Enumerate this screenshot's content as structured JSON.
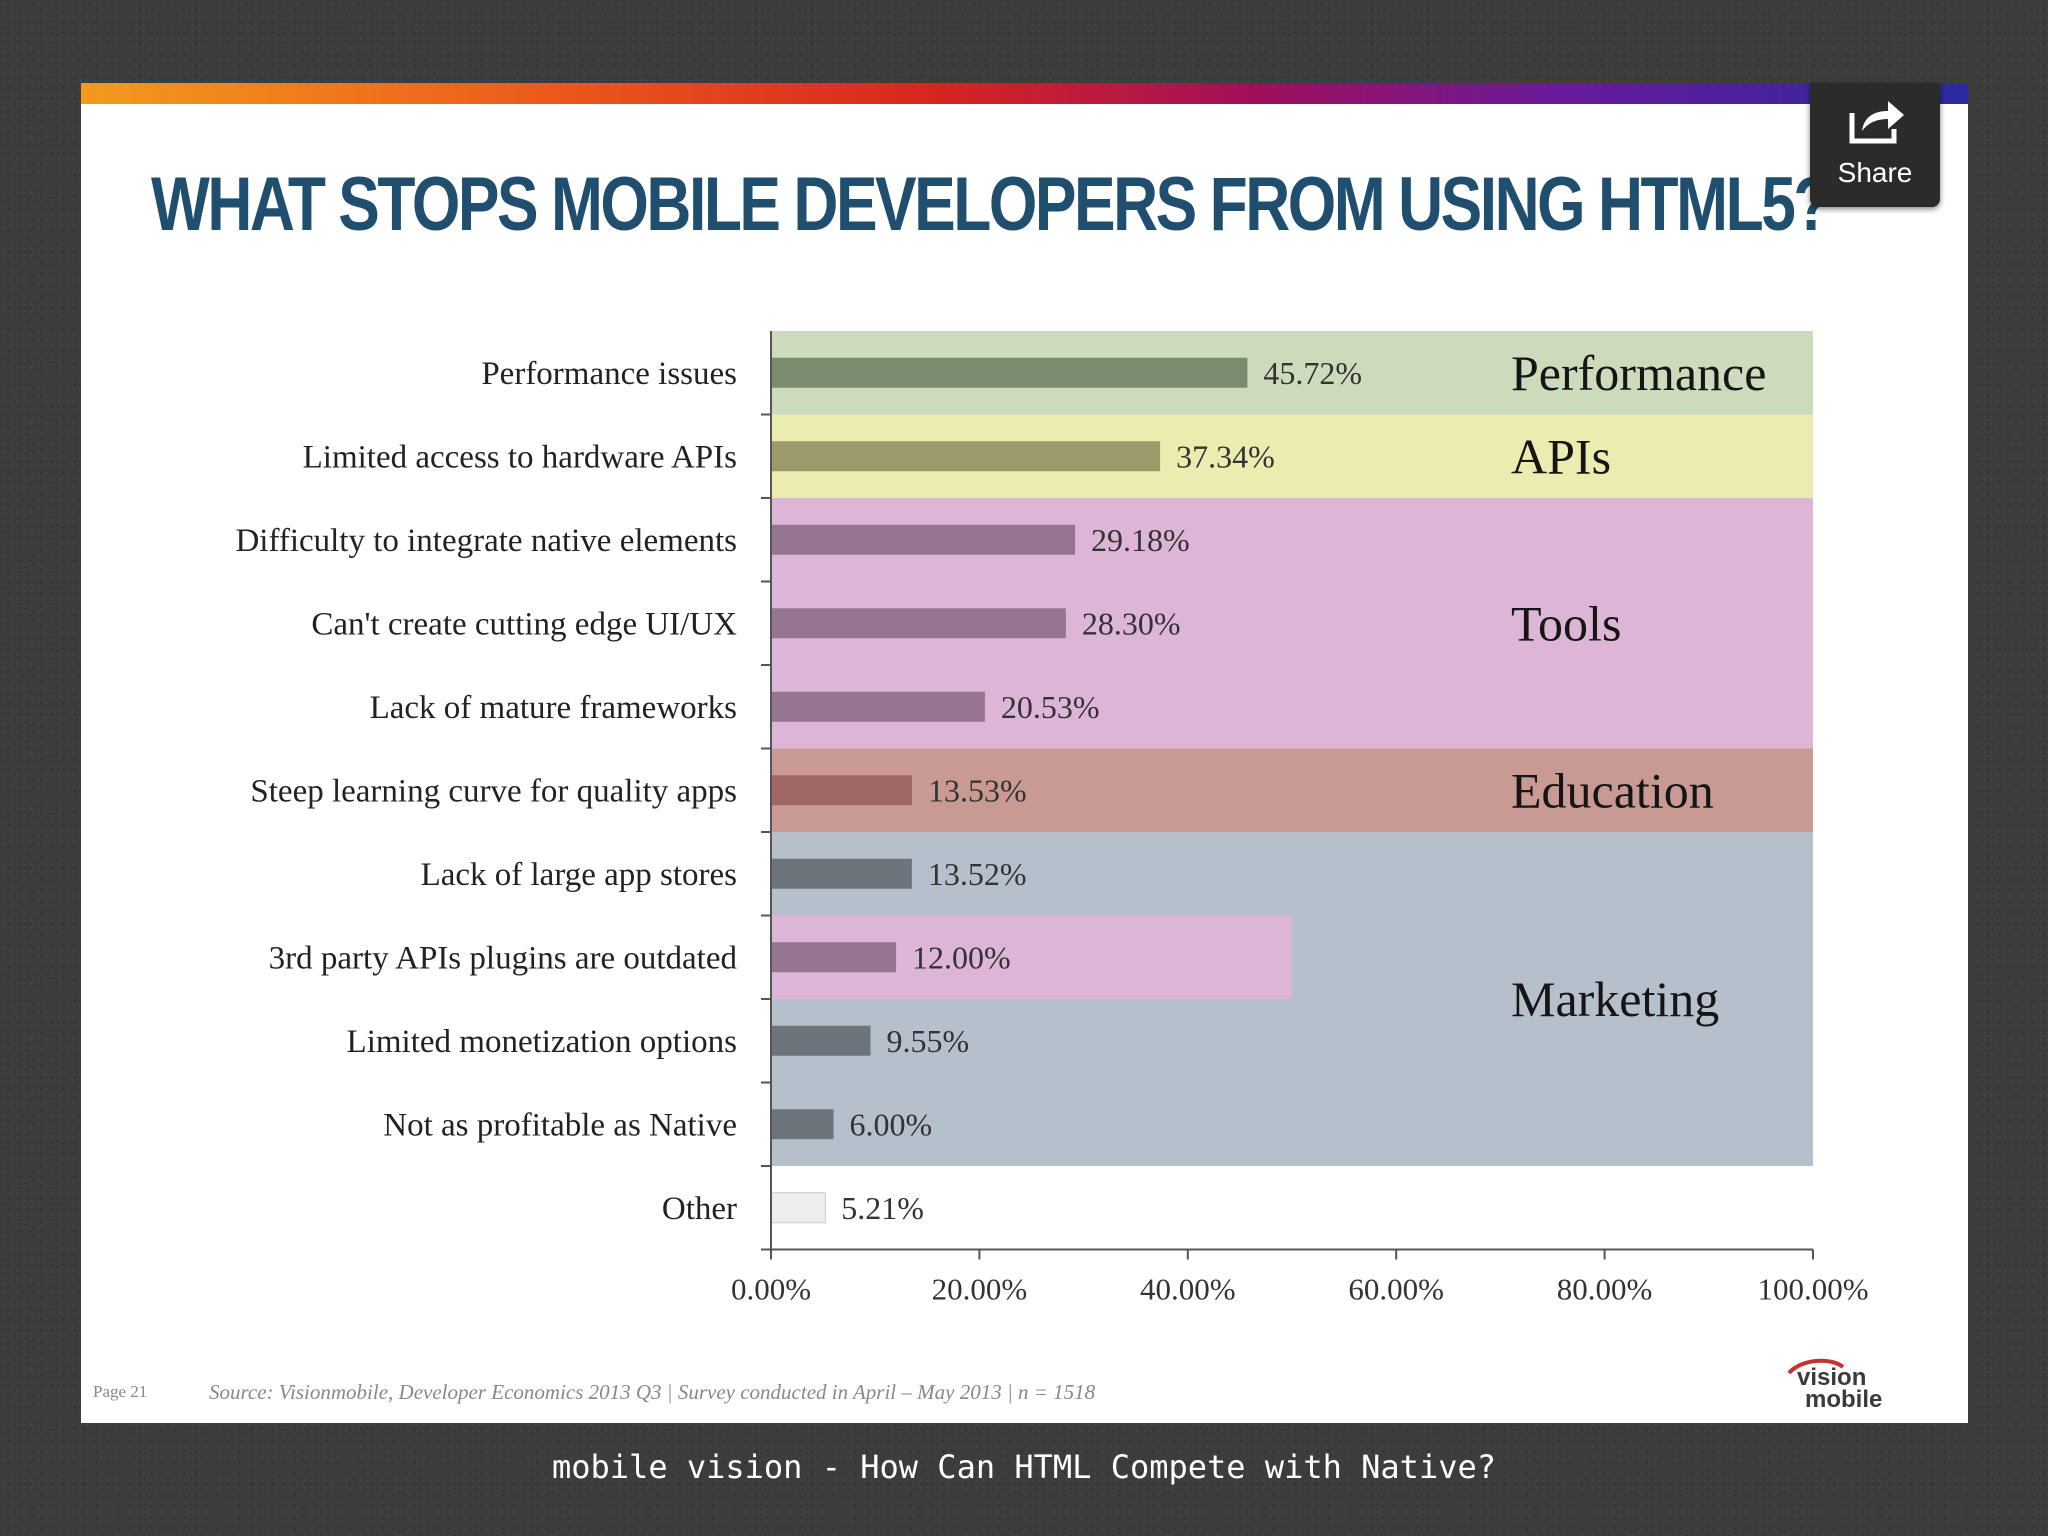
{
  "slide": {
    "title": "WHAT STOPS MOBILE DEVELOPERS FROM USING HTML5?",
    "share_label": "Share",
    "page_number": "Page 21",
    "source": "Source: Visionmobile, Developer Economics 2013 Q3 | Survey conducted in April – May 2013 | n = 1518",
    "logo_text": "vision mobile"
  },
  "caption": "mobile vision - How Can HTML Compete with Native?",
  "chart_data": {
    "type": "bar",
    "orientation": "horizontal",
    "categories": [
      "Performance issues",
      "Limited access to hardware APIs",
      "Difficulty to integrate native elements",
      "Can't create cutting edge UI/UX",
      "Lack of mature frameworks",
      "Steep learning curve for quality apps",
      "Lack of large app stores",
      "3rd party APIs plugins are outdated",
      "Limited monetization options",
      "Not as profitable as Native",
      "Other"
    ],
    "values": [
      45.72,
      37.34,
      29.18,
      28.3,
      20.53,
      13.53,
      13.52,
      12.0,
      9.55,
      6.0,
      5.21
    ],
    "value_labels": [
      "45.72%",
      "37.34%",
      "29.18%",
      "28.30%",
      "20.53%",
      "13.53%",
      "13.52%",
      "12.00%",
      "9.55%",
      "6.00%",
      "5.21%"
    ],
    "xlim": [
      0,
      100
    ],
    "x_ticks": [
      "0.00%",
      "20.00%",
      "40.00%",
      "60.00%",
      "80.00%",
      "100.00%"
    ],
    "groups": [
      {
        "name": "Performance",
        "first": 0,
        "last": 0,
        "bg": "#cddbbd",
        "bar": "#7a8c70"
      },
      {
        "name": "APIs",
        "first": 1,
        "last": 1,
        "bg": "#ecebb0",
        "bar": "#9a9a6a"
      },
      {
        "name": "Tools",
        "first": 2,
        "last": 4,
        "bg": "#ddb6d7",
        "bar": "#957590"
      },
      {
        "name": "Education",
        "first": 5,
        "last": 5,
        "bg": "#c99a94",
        "bar": "#a06864"
      },
      {
        "name": "Marketing",
        "first": 6,
        "last": 9,
        "bg": "#b6c0cc",
        "bar": "#6e747c"
      }
    ],
    "highlight": {
      "category_index": 7,
      "bg": "#ddb6d7",
      "bar": "#957590",
      "extent": 50
    },
    "other_bar_color": "#eeeeee"
  }
}
